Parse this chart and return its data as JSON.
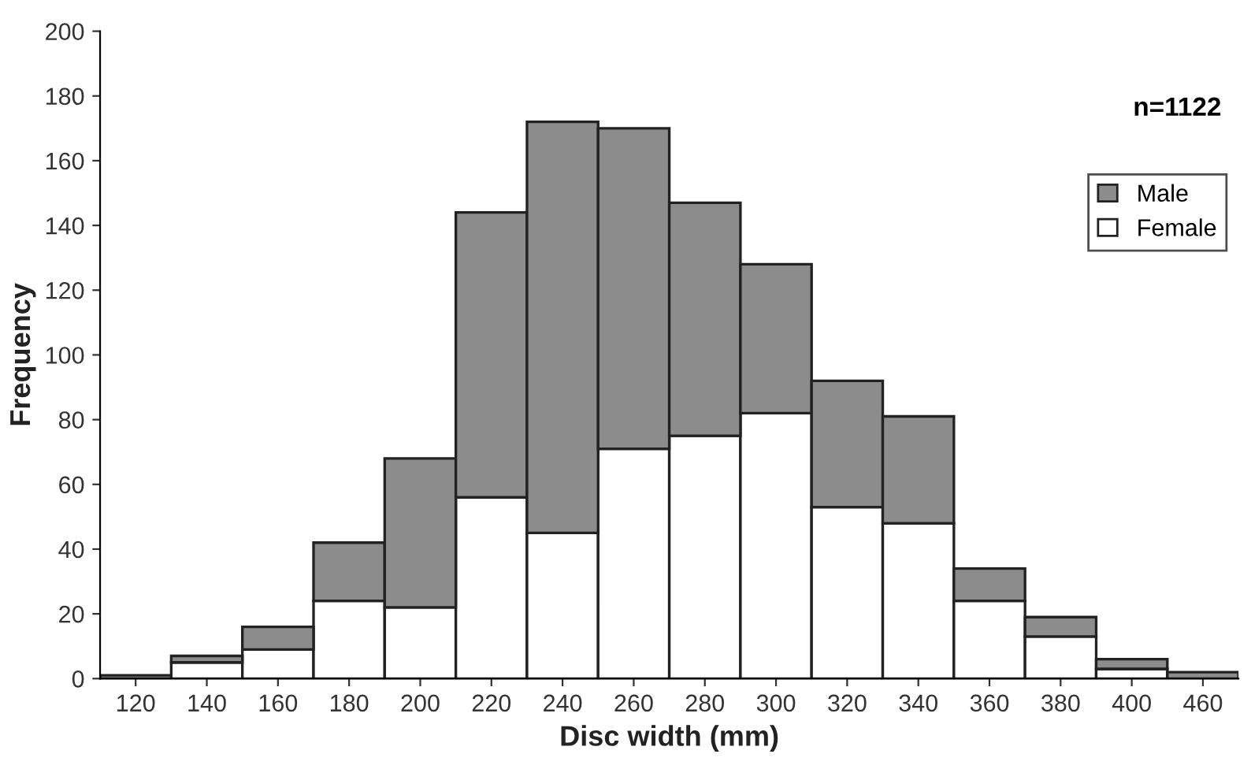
{
  "chart_data": {
    "type": "bar",
    "stacked": true,
    "xlabel": "Disc width (mm)",
    "ylabel": "Frequency",
    "categories": [
      "120",
      "140",
      "160",
      "180",
      "200",
      "220",
      "240",
      "260",
      "280",
      "300",
      "320",
      "340",
      "360",
      "380",
      "400",
      "460"
    ],
    "series": [
      {
        "name": "Female",
        "color": "#ffffff",
        "values": [
          0,
          5,
          9,
          24,
          22,
          56,
          45,
          71,
          75,
          82,
          53,
          48,
          24,
          13,
          3,
          0
        ]
      },
      {
        "name": "Male",
        "color": "#8c8c8c",
        "values": [
          1,
          2,
          7,
          18,
          46,
          88,
          127,
          99,
          72,
          46,
          39,
          33,
          10,
          6,
          3,
          2
        ]
      }
    ],
    "ylim": [
      0,
      200
    ],
    "yticks": [
      0,
      20,
      40,
      60,
      80,
      100,
      120,
      140,
      160,
      180,
      200
    ],
    "grid": false,
    "legend": "right",
    "annotations": [
      "n=1122"
    ]
  }
}
